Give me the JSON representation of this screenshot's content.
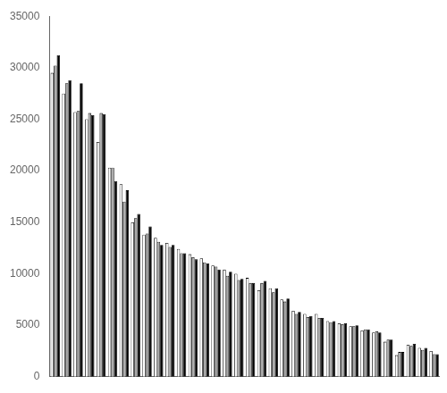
{
  "chart_data": {
    "type": "bar",
    "categories": [
      null,
      null,
      null,
      null,
      null,
      null,
      null,
      null,
      null,
      null,
      null,
      null,
      null,
      null,
      null,
      null,
      null,
      null,
      null,
      null,
      null,
      null,
      null,
      null,
      null,
      null,
      null,
      null,
      null,
      null,
      null,
      null,
      null,
      null
    ],
    "series": [
      {
        "color": "white",
        "values": [
          29500,
          27500,
          25700,
          25000,
          22800,
          20300,
          18700,
          15000,
          13800,
          13500,
          13000,
          12400,
          11900,
          11500,
          10800,
          10400,
          10000,
          9600,
          8400,
          8600,
          7500,
          6400,
          6100,
          6100,
          5400,
          5200,
          4900,
          4500,
          4300,
          3400,
          2100,
          3100,
          2800,
          2500
        ]
      },
      {
        "color": "#aaaaaa",
        "values": [
          30200,
          28500,
          25800,
          25600,
          25600,
          20300,
          17000,
          15400,
          13900,
          13100,
          12600,
          12000,
          11600,
          11100,
          10700,
          9800,
          9400,
          9100,
          9100,
          8200,
          7300,
          6100,
          5800,
          5700,
          5300,
          5100,
          4900,
          4600,
          4400,
          3600,
          2400,
          3000,
          2600,
          2200
        ]
      },
      {
        "color": "black",
        "values": [
          31200,
          28800,
          28500,
          25400,
          25500,
          19000,
          18100,
          15800,
          14600,
          12800,
          12800,
          12000,
          11400,
          11000,
          10400,
          10200,
          9500,
          9100,
          9300,
          8600,
          7600,
          6300,
          5900,
          5700,
          5400,
          5200,
          5000,
          4600,
          4300,
          3600,
          2400,
          3200,
          2800,
          2200
        ]
      }
    ],
    "ylim": [
      0,
      35000
    ],
    "yticks": [
      0,
      5000,
      10000,
      15000,
      20000,
      25000,
      30000,
      35000
    ],
    "grid": false,
    "tick_labels": "y"
  }
}
